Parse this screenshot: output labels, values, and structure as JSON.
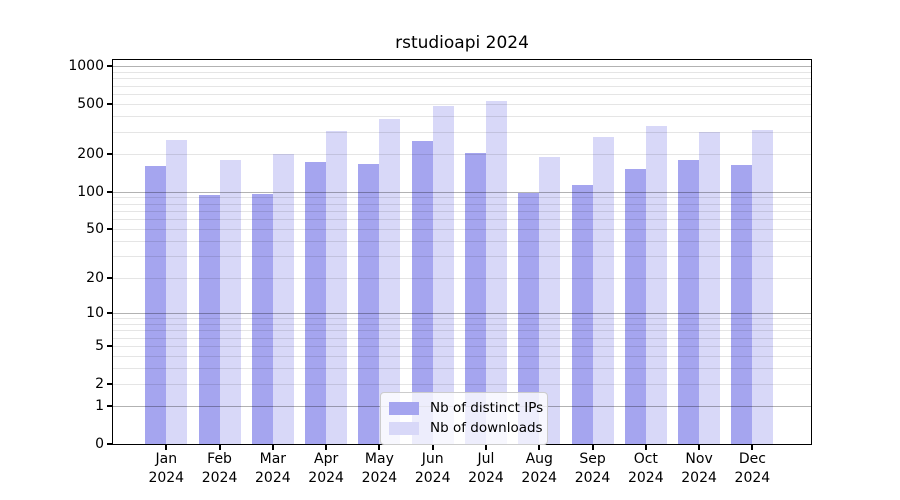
{
  "chart_data": {
    "type": "bar",
    "title": "rstudioapi 2024",
    "categories": [
      "Jan",
      "Feb",
      "Mar",
      "Apr",
      "May",
      "Jun",
      "Jul",
      "Aug",
      "Sep",
      "Oct",
      "Nov",
      "Dec"
    ],
    "category_year": "2024",
    "series": [
      {
        "name": "Nb of distinct IPs",
        "color": "#a5a5ef",
        "values": [
          160,
          94,
          96,
          172,
          165,
          252,
          205,
          97,
          113,
          153,
          178,
          162
        ]
      },
      {
        "name": "Nb of downloads",
        "color": "#d8d8f8",
        "values": [
          260,
          178,
          199,
          305,
          380,
          485,
          528,
          190,
          275,
          335,
          299,
          313
        ]
      }
    ],
    "y_ticks": [
      0,
      1,
      2,
      5,
      10,
      20,
      50,
      100,
      200,
      500,
      1000
    ],
    "y_minor_gridlines": [
      3,
      4,
      6,
      7,
      8,
      9,
      30,
      40,
      60,
      70,
      80,
      90,
      300,
      400,
      600,
      700,
      800,
      900
    ],
    "scale": "log1p",
    "ylim": [
      0,
      1120
    ],
    "xlabel": "",
    "ylabel": "",
    "grid": true,
    "legend_position": "lower-center-inside",
    "colors": {
      "major_gridline": "#b3b3b3",
      "minor_gridline": "#e6e6e6",
      "axis": "#000000",
      "background": "#ffffff"
    }
  }
}
